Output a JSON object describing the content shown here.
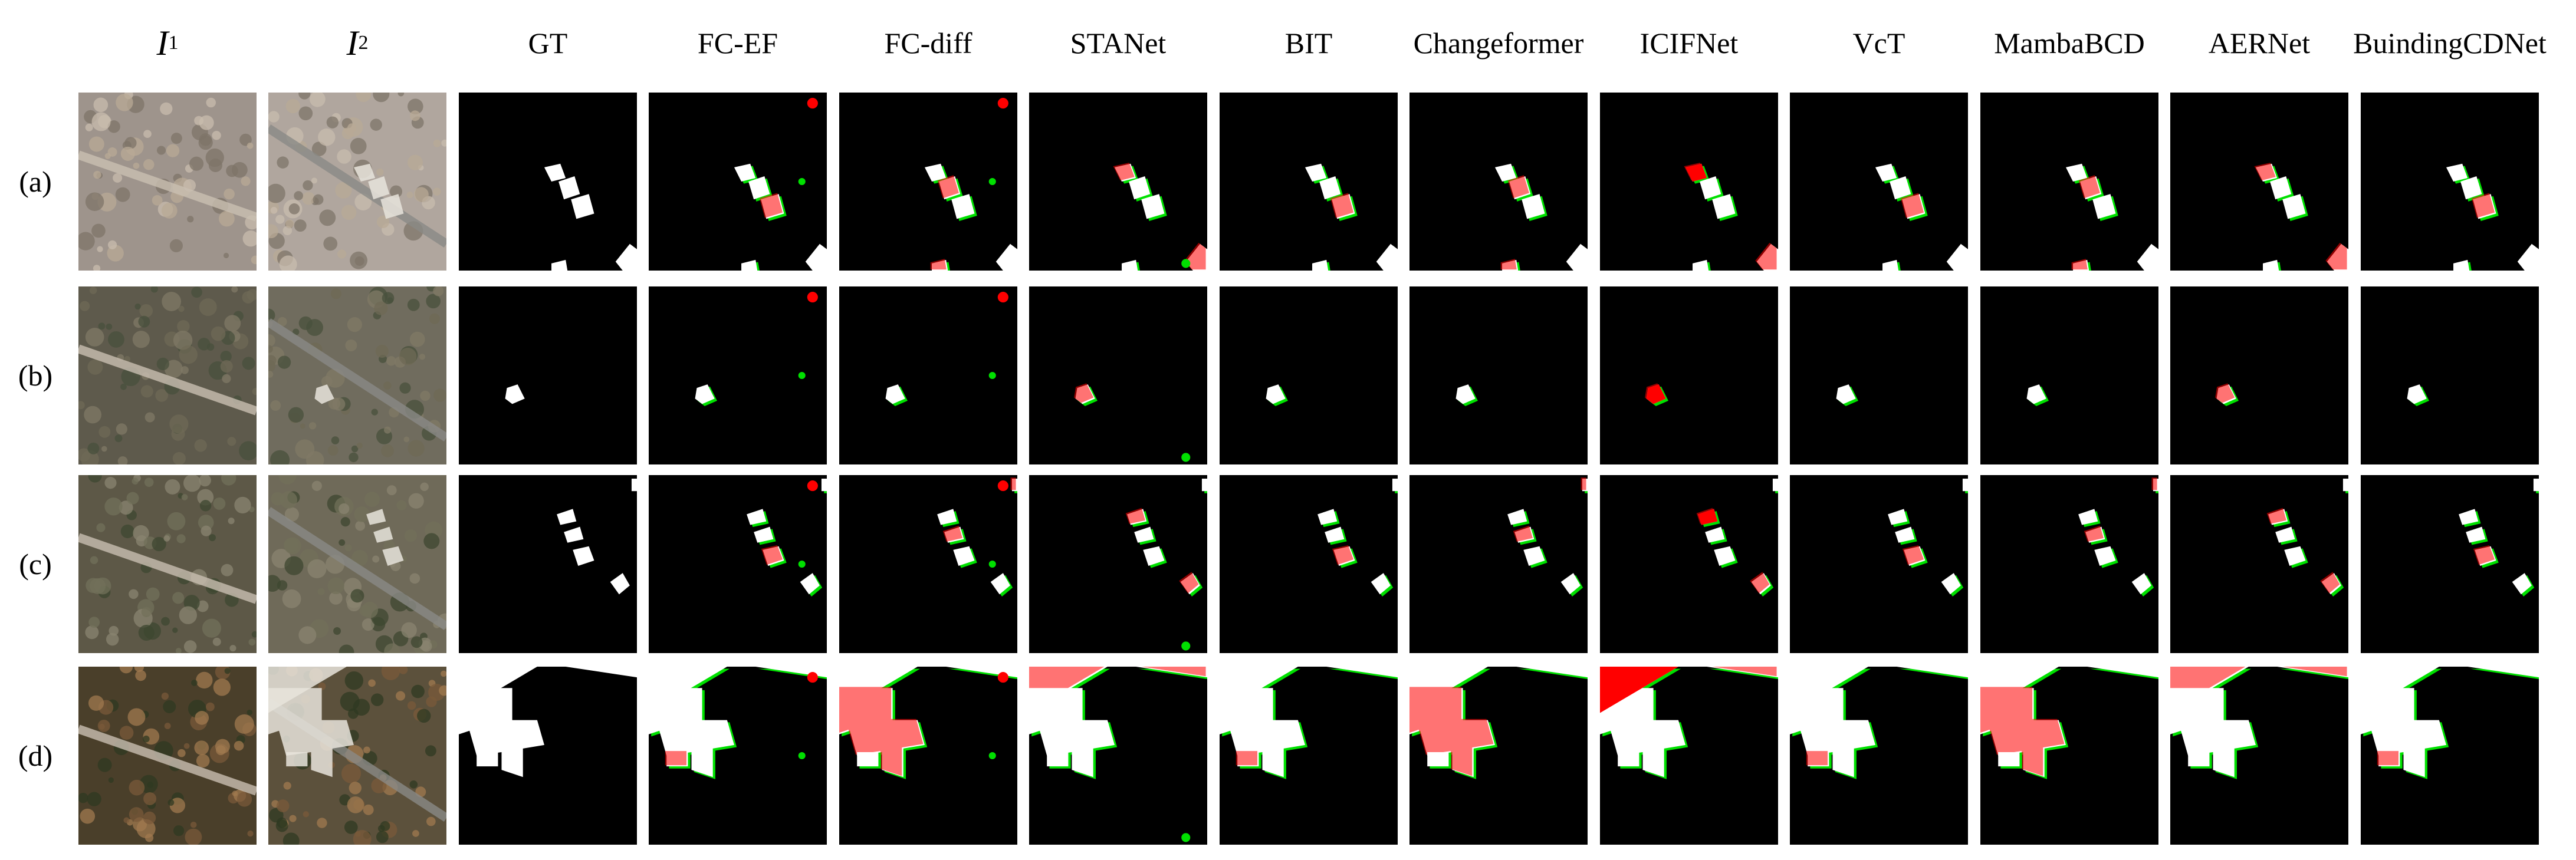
{
  "figure": {
    "input_headers": [
      {
        "symbol": "I",
        "subscript": "1"
      },
      {
        "symbol": "I",
        "subscript": "2"
      }
    ],
    "method_headers": [
      "GT",
      "FC-EF",
      "FC-diff",
      "STANet",
      "BIT",
      "Changeformer",
      "ICIFNet",
      "VcT",
      "MambaBCD",
      "AERNet",
      "BuindingCDNet"
    ],
    "row_labels": [
      "(a)",
      "(b)",
      "(c)",
      "(d)"
    ]
  },
  "legend_colors": {
    "unchanged": "#000000",
    "true_positive": "#ffffff",
    "false_positive": "#00e000",
    "false_negative": "#ff0000"
  },
  "icons": {
    "input_image": "aerial-photo",
    "result_map": "binary-change-map"
  }
}
